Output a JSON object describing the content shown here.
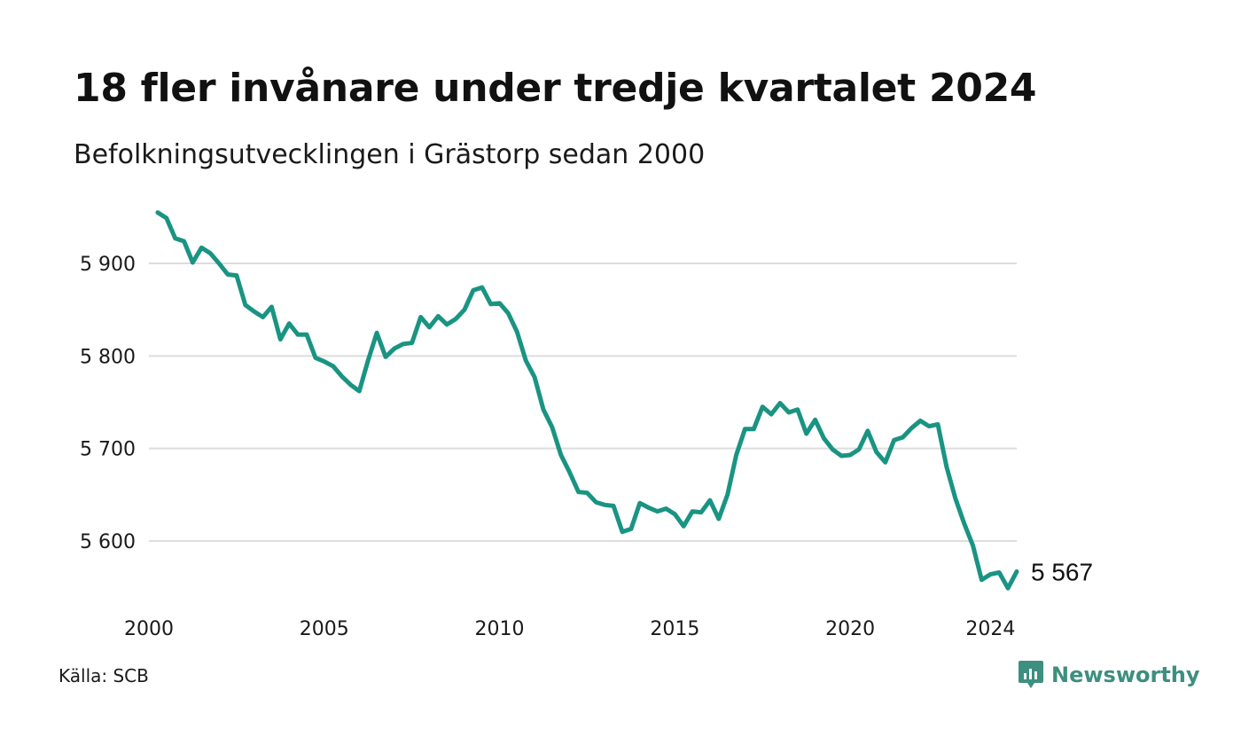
{
  "header": {
    "title": "18 fler invånare under tredje kvartalet 2024",
    "subtitle": "Befolkningsutvecklingen i Grästorp sedan 2000"
  },
  "footer": {
    "source": "Källa: SCB",
    "brand": "Newsworthy"
  },
  "colors": {
    "line": "#1a9482",
    "grid": "#dddddd",
    "brand": "#3d8f7f"
  },
  "icons": {
    "brand_logo": "newsworthy-logo-icon"
  },
  "chart_data": {
    "type": "line",
    "title": "18 fler invånare under tredje kvartalet 2024",
    "subtitle": "Befolkningsutvecklingen i Grästorp sedan 2000",
    "xlabel": "",
    "ylabel": "",
    "x_ticks": [
      2000,
      2005,
      2010,
      2015,
      2020,
      2024
    ],
    "x_tick_labels": [
      "2000",
      "2005",
      "2010",
      "2015",
      "2020",
      "2024"
    ],
    "y_ticks": [
      5600,
      5700,
      5800,
      5900
    ],
    "y_tick_labels": [
      "5 600",
      "5 700",
      "5 800",
      "5 900"
    ],
    "xlim": [
      2000,
      2024.75
    ],
    "ylim": [
      5540,
      5960
    ],
    "grid": "horizontal",
    "end_label": "5 567",
    "series": [
      {
        "values": [
          [
            2000.25,
            5955
          ],
          [
            2000.5,
            5949
          ],
          [
            2000.75,
            5927
          ],
          [
            2001.0,
            5924
          ],
          [
            2001.25,
            5901
          ],
          [
            2001.5,
            5917
          ],
          [
            2001.75,
            5911
          ],
          [
            2002.0,
            5900
          ],
          [
            2002.25,
            5888
          ],
          [
            2002.5,
            5887
          ],
          [
            2002.75,
            5855
          ],
          [
            2003.0,
            5848
          ],
          [
            2003.25,
            5842
          ],
          [
            2003.5,
            5853
          ],
          [
            2003.75,
            5818
          ],
          [
            2004.0,
            5835
          ],
          [
            2004.25,
            5823
          ],
          [
            2004.5,
            5823
          ],
          [
            2004.75,
            5798
          ],
          [
            2005.0,
            5794
          ],
          [
            2005.25,
            5789
          ],
          [
            2005.5,
            5778
          ],
          [
            2005.75,
            5769
          ],
          [
            2006.0,
            5762
          ],
          [
            2006.25,
            5795
          ],
          [
            2006.5,
            5825
          ],
          [
            2006.75,
            5799
          ],
          [
            2007.0,
            5808
          ],
          [
            2007.25,
            5813
          ],
          [
            2007.5,
            5814
          ],
          [
            2007.75,
            5842
          ],
          [
            2008.0,
            5831
          ],
          [
            2008.25,
            5843
          ],
          [
            2008.5,
            5834
          ],
          [
            2008.75,
            5840
          ],
          [
            2009.0,
            5850
          ],
          [
            2009.25,
            5871
          ],
          [
            2009.5,
            5874
          ],
          [
            2009.75,
            5856
          ],
          [
            2010.0,
            5857
          ],
          [
            2010.25,
            5846
          ],
          [
            2010.5,
            5826
          ],
          [
            2010.75,
            5795
          ],
          [
            2011.0,
            5777
          ],
          [
            2011.25,
            5742
          ],
          [
            2011.5,
            5723
          ],
          [
            2011.75,
            5693
          ],
          [
            2012.0,
            5674
          ],
          [
            2012.25,
            5653
          ],
          [
            2012.5,
            5652
          ],
          [
            2012.75,
            5642
          ],
          [
            2013.0,
            5639
          ],
          [
            2013.25,
            5638
          ],
          [
            2013.5,
            5610
          ],
          [
            2013.75,
            5613
          ],
          [
            2014.0,
            5641
          ],
          [
            2014.25,
            5636
          ],
          [
            2014.5,
            5632
          ],
          [
            2014.75,
            5635
          ],
          [
            2015.0,
            5629
          ],
          [
            2015.25,
            5616
          ],
          [
            2015.5,
            5632
          ],
          [
            2015.75,
            5631
          ],
          [
            2016.0,
            5644
          ],
          [
            2016.25,
            5624
          ],
          [
            2016.5,
            5650
          ],
          [
            2016.75,
            5693
          ],
          [
            2017.0,
            5721
          ],
          [
            2017.25,
            5721
          ],
          [
            2017.5,
            5745
          ],
          [
            2017.75,
            5737
          ],
          [
            2018.0,
            5749
          ],
          [
            2018.25,
            5739
          ],
          [
            2018.5,
            5742
          ],
          [
            2018.75,
            5716
          ],
          [
            2019.0,
            5731
          ],
          [
            2019.25,
            5711
          ],
          [
            2019.5,
            5699
          ],
          [
            2019.75,
            5692
          ],
          [
            2020.0,
            5693
          ],
          [
            2020.25,
            5699
          ],
          [
            2020.5,
            5719
          ],
          [
            2020.75,
            5696
          ],
          [
            2021.0,
            5685
          ],
          [
            2021.25,
            5709
          ],
          [
            2021.5,
            5712
          ],
          [
            2021.75,
            5722
          ],
          [
            2022.0,
            5730
          ],
          [
            2022.25,
            5724
          ],
          [
            2022.5,
            5726
          ],
          [
            2022.75,
            5680
          ],
          [
            2023.0,
            5646
          ],
          [
            2023.25,
            5619
          ],
          [
            2023.5,
            5595
          ],
          [
            2023.75,
            5558
          ],
          [
            2024.0,
            5564
          ],
          [
            2024.25,
            5566
          ],
          [
            2024.5,
            5549
          ],
          [
            2024.75,
            5567
          ]
        ]
      }
    ]
  }
}
